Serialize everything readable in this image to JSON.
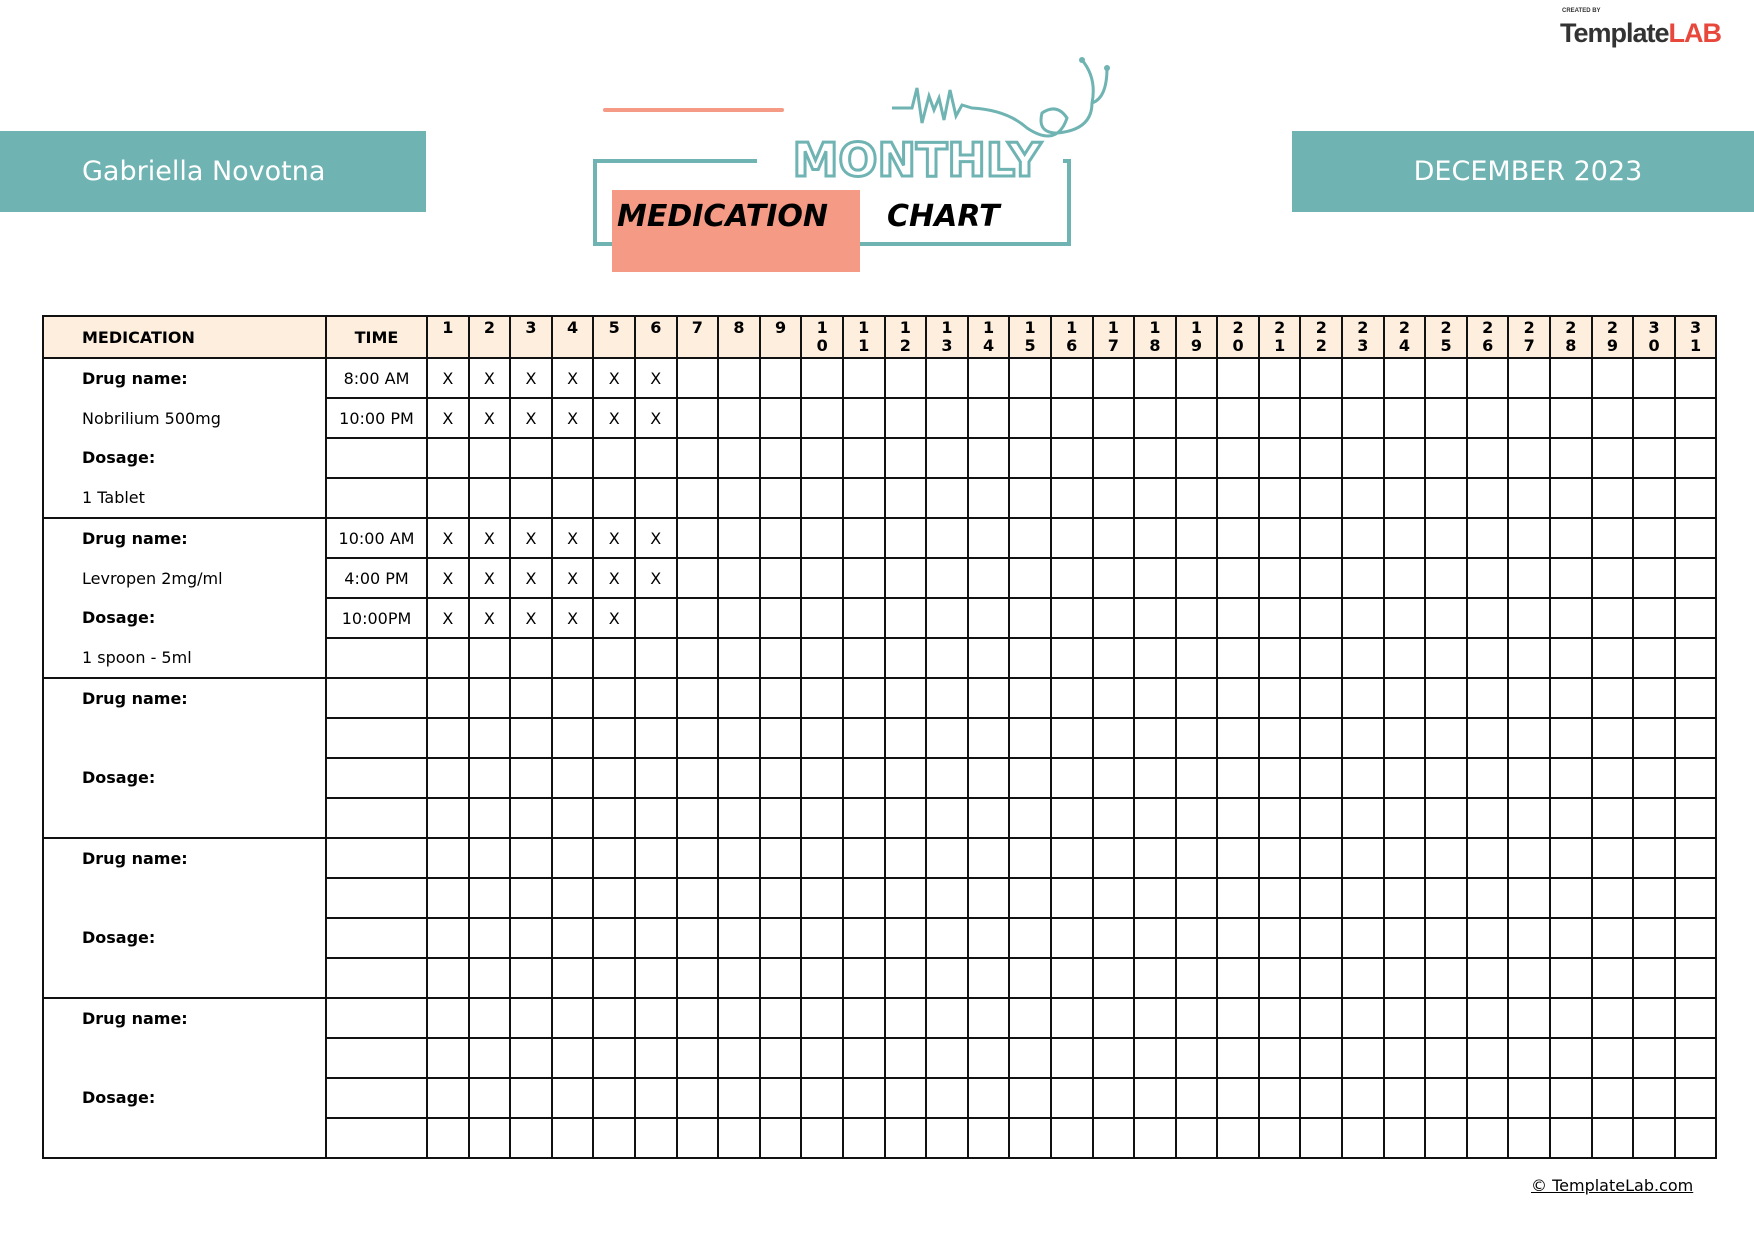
{
  "brand": {
    "created_by": "CREATED BY",
    "name_a": "Template",
    "name_b": "LAB"
  },
  "patient_name": "Gabriella Novotna",
  "month": "DECEMBER 2023",
  "title": {
    "line1": "MONTHLY",
    "line2a": "MEDICATION",
    "line2b": "CHART"
  },
  "colors": {
    "teal": "#6fb3b3",
    "salmon": "#f49a85",
    "header_bg": "#fdeedd"
  },
  "table": {
    "headers": {
      "medication": "MEDICATION",
      "time": "TIME"
    },
    "days": [
      "1",
      "2",
      "3",
      "4",
      "5",
      "6",
      "7",
      "8",
      "9",
      "10",
      "11",
      "12",
      "13",
      "14",
      "15",
      "16",
      "17",
      "18",
      "19",
      "20",
      "21",
      "22",
      "23",
      "24",
      "25",
      "26",
      "27",
      "28",
      "29",
      "30",
      "31"
    ],
    "drug_label": "Drug name:",
    "dosage_label": "Dosage:",
    "groups": [
      {
        "drug": "Nobrilium 500mg",
        "dosage": "1 Tablet",
        "rows": [
          {
            "time": "8:00 AM",
            "marks": [
              "X",
              "X",
              "X",
              "X",
              "X",
              "X"
            ]
          },
          {
            "time": "10:00 PM",
            "marks": [
              "X",
              "X",
              "X",
              "X",
              "X",
              "X"
            ]
          },
          {
            "time": "",
            "marks": []
          },
          {
            "time": "",
            "marks": []
          }
        ]
      },
      {
        "drug": "Levropen 2mg/ml",
        "dosage": "1 spoon - 5ml",
        "rows": [
          {
            "time": "10:00 AM",
            "marks": [
              "X",
              "X",
              "X",
              "X",
              "X",
              "X"
            ]
          },
          {
            "time": "4:00 PM",
            "marks": [
              "X",
              "X",
              "X",
              "X",
              "X",
              "X"
            ]
          },
          {
            "time": "10:00PM",
            "marks": [
              "X",
              "X",
              "X",
              "X",
              "X"
            ]
          },
          {
            "time": "",
            "marks": []
          }
        ]
      },
      {
        "drug": "",
        "dosage": "",
        "rows": [
          {
            "time": "",
            "marks": []
          },
          {
            "time": "",
            "marks": []
          },
          {
            "time": "",
            "marks": []
          },
          {
            "time": "",
            "marks": []
          }
        ]
      },
      {
        "drug": "",
        "dosage": "",
        "rows": [
          {
            "time": "",
            "marks": []
          },
          {
            "time": "",
            "marks": []
          },
          {
            "time": "",
            "marks": []
          },
          {
            "time": "",
            "marks": []
          }
        ]
      },
      {
        "drug": "",
        "dosage": "",
        "rows": [
          {
            "time": "",
            "marks": []
          },
          {
            "time": "",
            "marks": []
          },
          {
            "time": "",
            "marks": []
          },
          {
            "time": "",
            "marks": []
          }
        ]
      }
    ]
  },
  "footer": "© TemplateLab.com"
}
